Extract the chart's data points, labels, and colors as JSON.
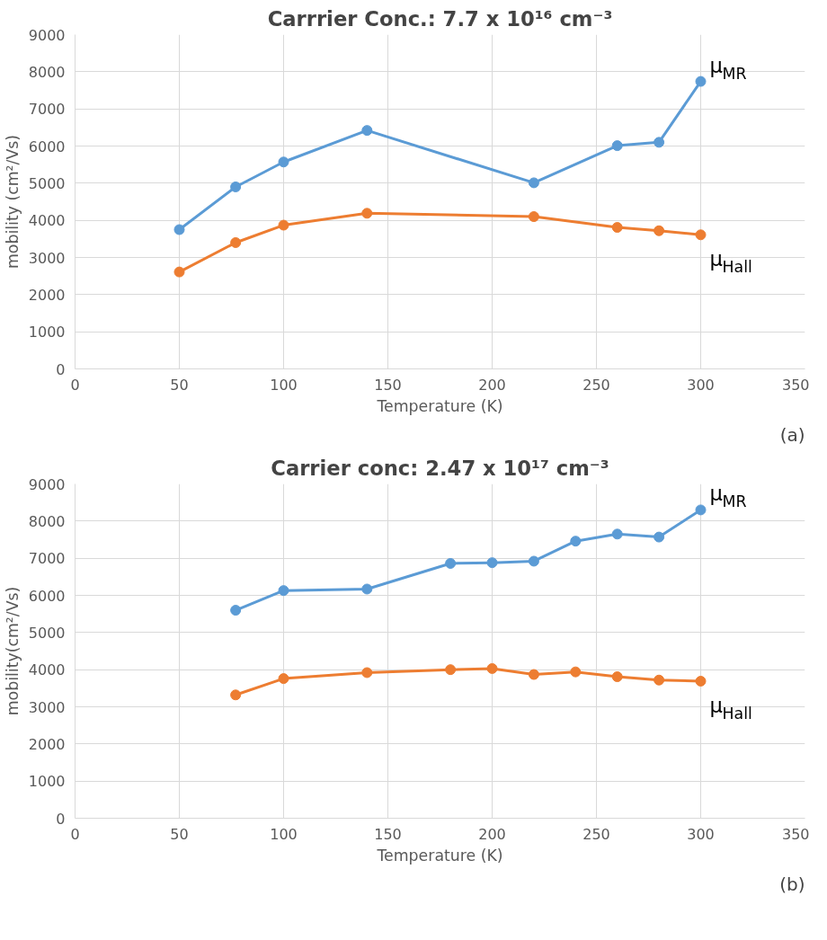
{
  "chart_data": [
    {
      "type": "line",
      "title": "Carrrier Conc.: 7.7 x 10¹⁶ cm⁻³",
      "xlabel": "Temperature (K)",
      "ylabel": "mobility (cm²/Vs)",
      "annotations": [
        "(a)"
      ],
      "x": [
        50,
        77,
        100,
        140,
        220,
        260,
        280,
        300
      ],
      "series": [
        {
          "name": "μ$_{MR}$",
          "color": "#5b9bd5",
          "values": [
            3750,
            4900,
            5570,
            6420,
            5010,
            6010,
            6100,
            7740
          ]
        },
        {
          "name": "μ$_{Hall}$",
          "color": "#ed7d31",
          "values": [
            2610,
            3400,
            3870,
            4190,
            4100,
            3810,
            3720,
            3610
          ]
        }
      ],
      "xlim": [
        0,
        350
      ],
      "xticks": [
        0,
        50,
        100,
        150,
        200,
        250,
        300,
        350
      ],
      "ylim": [
        0,
        9000
      ],
      "yticks": [
        0,
        1000,
        2000,
        3000,
        4000,
        5000,
        6000,
        7000,
        8000,
        9000
      ],
      "grid": true,
      "legend": false,
      "marker": "circle",
      "line_style": "solid"
    },
    {
      "type": "line",
      "title": "Carrier conc: 2.47 x 10¹⁷ cm⁻³",
      "xlabel": "Temperature (K)",
      "ylabel": "mobility(cm²/Vs)",
      "annotations": [
        "(b)"
      ],
      "x": [
        77,
        100,
        140,
        180,
        200,
        220,
        240,
        260,
        280,
        300
      ],
      "series": [
        {
          "name": "μ$_{MR}$",
          "color": "#5b9bd5",
          "values": [
            5600,
            6130,
            6170,
            6860,
            6880,
            6920,
            7460,
            7650,
            7570,
            8300
          ]
        },
        {
          "name": "μ$_{Hall}$",
          "color": "#ed7d31",
          "values": [
            3320,
            3760,
            3920,
            4000,
            4030,
            3870,
            3940,
            3810,
            3720,
            3690
          ]
        }
      ],
      "xlim": [
        0,
        350
      ],
      "xticks": [
        0,
        50,
        100,
        150,
        200,
        250,
        300,
        350
      ],
      "ylim": [
        0,
        9000
      ],
      "yticks": [
        0,
        1000,
        2000,
        3000,
        4000,
        5000,
        6000,
        7000,
        8000,
        9000
      ],
      "grid": true,
      "legend": false,
      "marker": "circle",
      "line_style": "solid"
    }
  ]
}
